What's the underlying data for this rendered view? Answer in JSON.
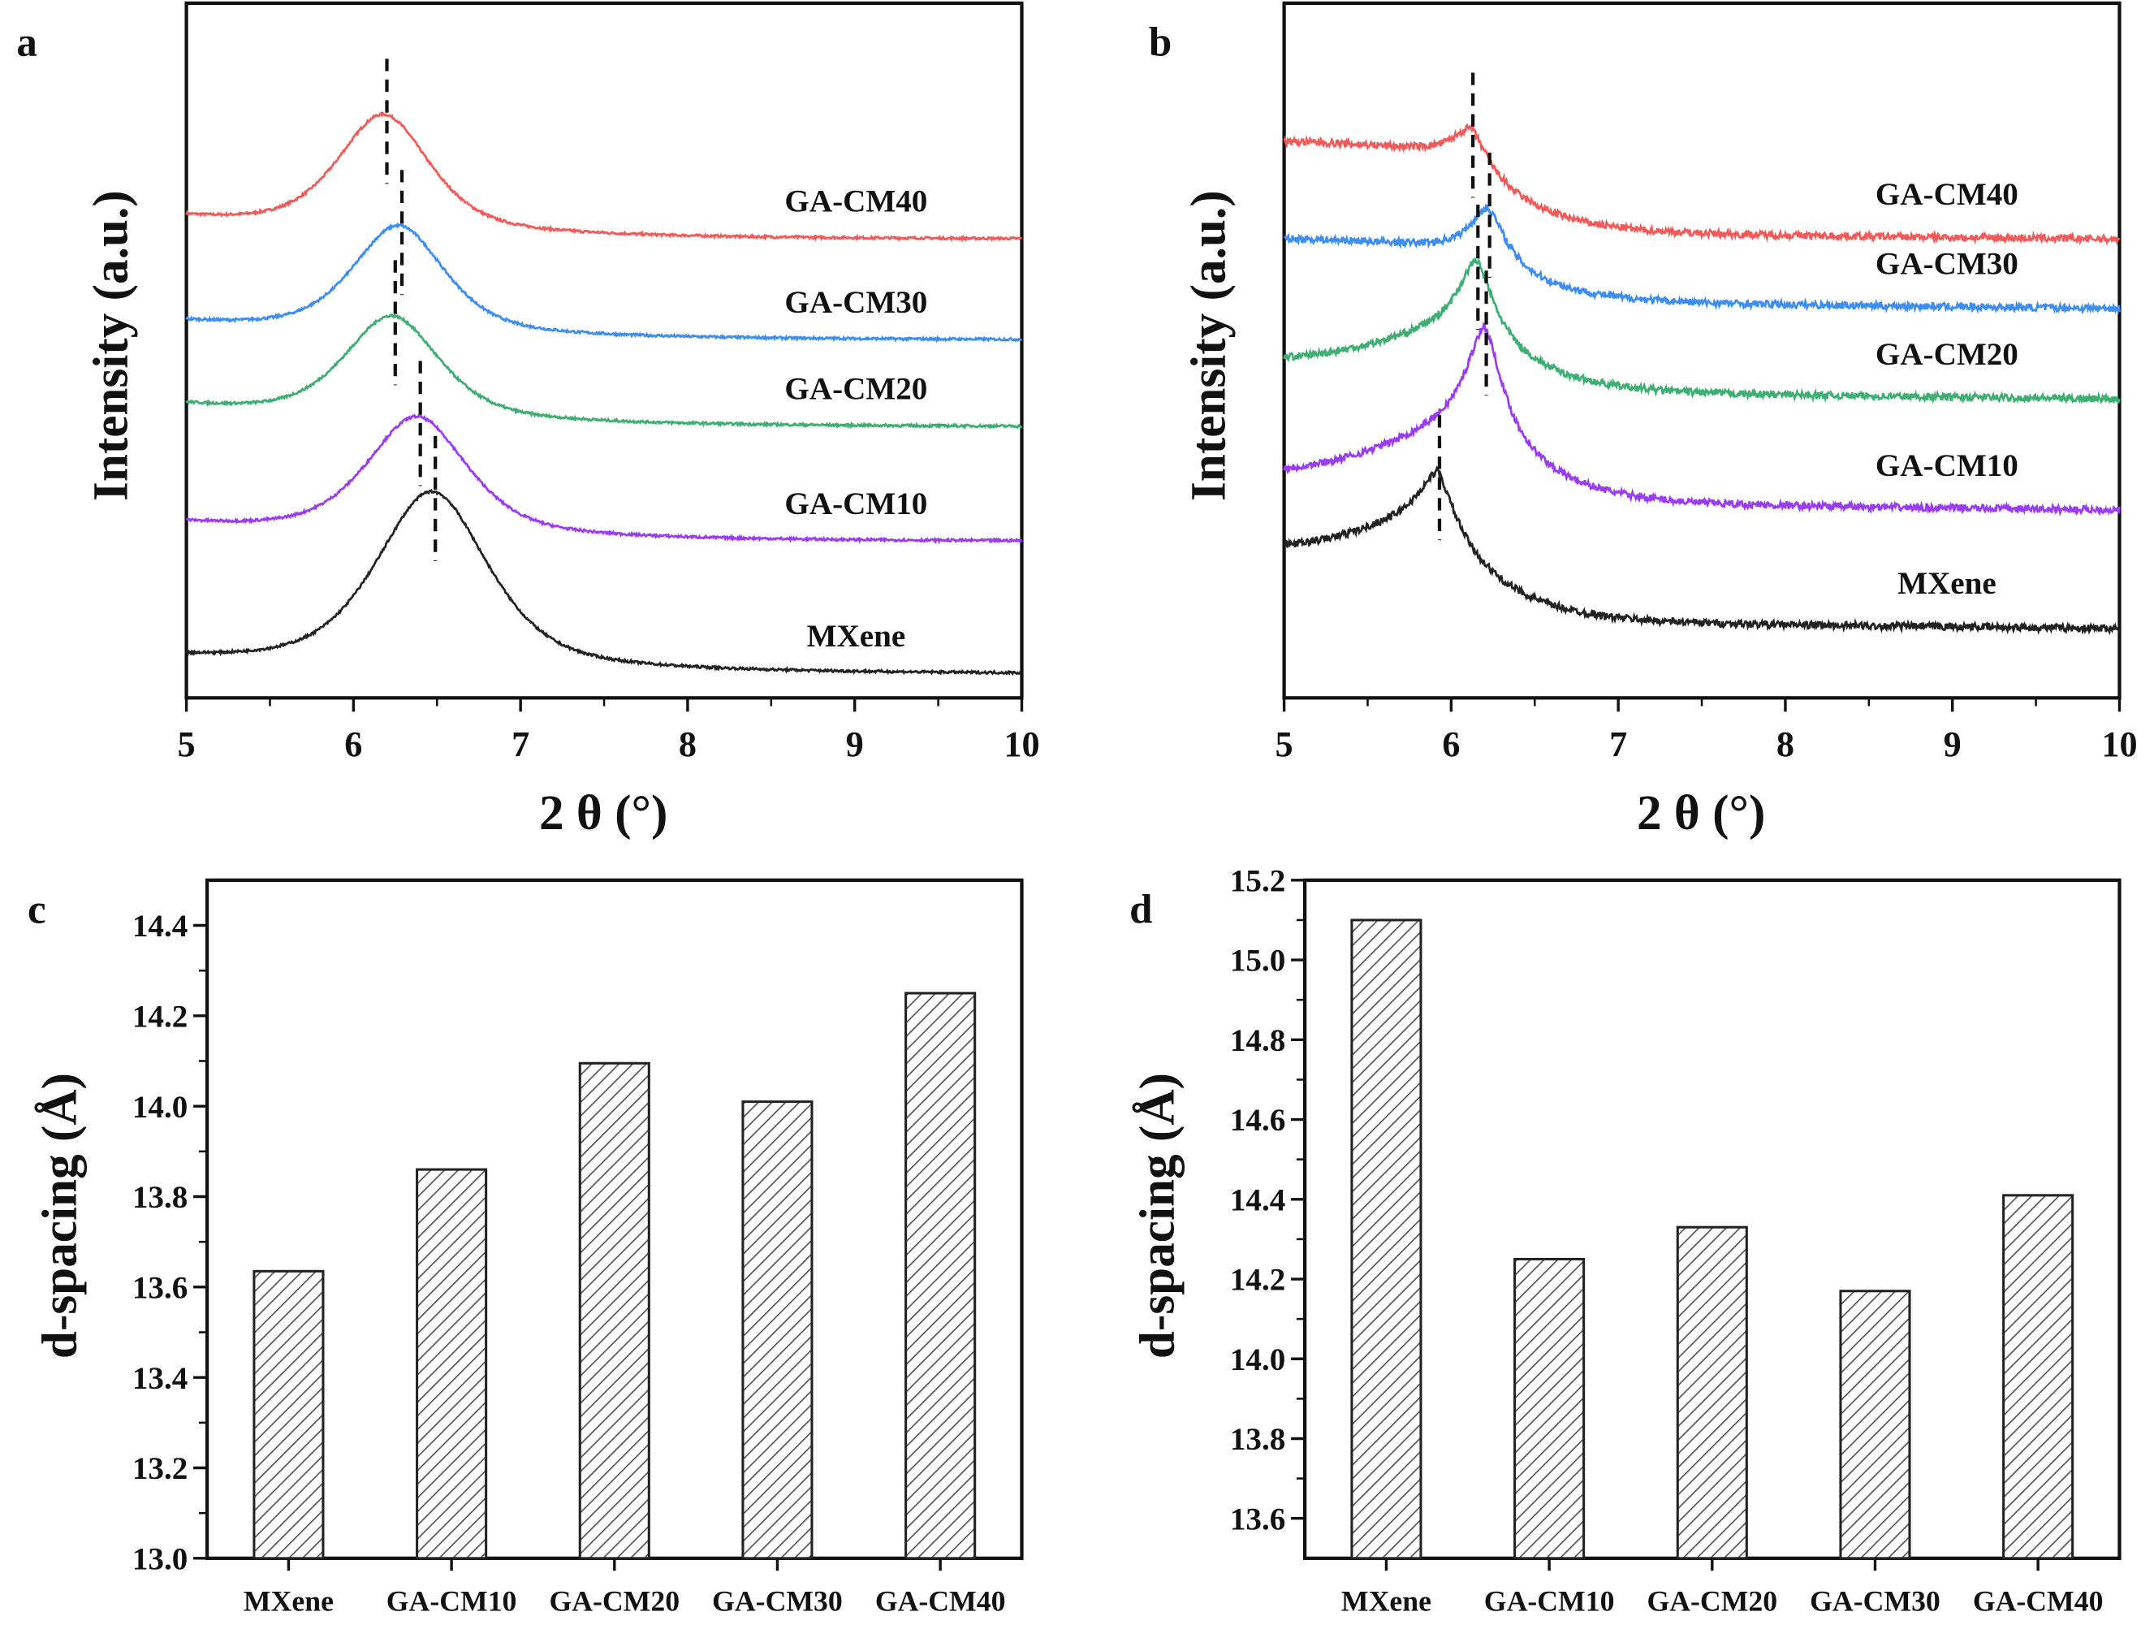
{
  "panel_letters": [
    "a",
    "b",
    "c",
    "d"
  ],
  "chart_data": [
    {
      "panel": "a",
      "type": "line",
      "xlabel": "2 θ (°)",
      "ylabel": "Intensity (a.u.)",
      "xlim": [
        5,
        10
      ],
      "ylim": [
        0,
        100
      ],
      "xticks": [
        "5",
        "6",
        "7",
        "8",
        "9",
        "10"
      ],
      "shape": "symmetric",
      "series": [
        {
          "name": "GA-CM40",
          "color": "#f25a5a",
          "peak_2theta": 6.18,
          "baseline_left": 69,
          "baseline_right": 66,
          "peak_top": 84,
          "hwhm": 0.33
        },
        {
          "name": "GA-CM30",
          "color": "#3d8ef0",
          "peak_2theta": 6.27,
          "baseline_left": 54,
          "baseline_right": 51.5,
          "peak_top": 68,
          "hwhm": 0.33
        },
        {
          "name": "GA-CM20",
          "color": "#3fae72",
          "peak_2theta": 6.23,
          "baseline_left": 42,
          "baseline_right": 39,
          "peak_top": 55,
          "hwhm": 0.34
        },
        {
          "name": "GA-CM10",
          "color": "#9b3cf5",
          "peak_2theta": 6.38,
          "baseline_left": 25,
          "baseline_right": 22.5,
          "peak_top": 40.5,
          "hwhm": 0.36
        },
        {
          "name": "MXene",
          "color": "#222222",
          "peak_2theta": 6.47,
          "baseline_left": 5.5,
          "baseline_right": 3.4,
          "peak_top": 29.7,
          "hwhm": 0.4
        }
      ]
    },
    {
      "panel": "b",
      "type": "line",
      "xlabel": "2 θ (°)",
      "ylabel": "Intensity (a.u.)",
      "xlim": [
        5,
        10
      ],
      "ylim": [
        0,
        100
      ],
      "xticks": [
        "5",
        "6",
        "7",
        "8",
        "9",
        "10"
      ],
      "shape": "asymmetric",
      "series": [
        {
          "name": "GA-CM40",
          "color": "#f25a5a",
          "peak_2theta": 6.12,
          "baseline_left": 80,
          "baseline_right": 67,
          "peak_top": 82,
          "shoulder": 78
        },
        {
          "name": "GA-CM30",
          "color": "#3d8ef0",
          "peak_2theta": 6.22,
          "baseline_left": 66,
          "baseline_right": 57,
          "peak_top": 70.5,
          "shoulder": 64
        },
        {
          "name": "GA-CM20",
          "color": "#3fae72",
          "peak_2theta": 6.15,
          "baseline_left": 49,
          "baseline_right": 44,
          "peak_top": 63,
          "shoulder": 55
        },
        {
          "name": "GA-CM10",
          "color": "#9b3cf5",
          "peak_2theta": 6.2,
          "baseline_left": 33,
          "baseline_right": 28,
          "peak_top": 53.5,
          "shoulder": 42
        },
        {
          "name": "MXene",
          "color": "#222222",
          "peak_2theta": 5.92,
          "baseline_left": 22,
          "baseline_right": 11,
          "peak_top": 32.7,
          "shoulder": 28
        }
      ]
    },
    {
      "panel": "c",
      "type": "bar",
      "xlabel": "",
      "ylabel": "d-spacing (Å)",
      "categories": [
        "MXene",
        "GA-CM10",
        "GA-CM20",
        "GA-CM30",
        "GA-CM40"
      ],
      "values": [
        13.635,
        13.86,
        14.095,
        14.01,
        14.25
      ],
      "ylim": [
        13.0,
        14.5
      ],
      "yticks": [
        "13.0",
        "13.2",
        "13.4",
        "13.6",
        "13.8",
        "14.0",
        "14.2",
        "14.4"
      ]
    },
    {
      "panel": "d",
      "type": "bar",
      "xlabel": "",
      "ylabel": "d-spacing (Å)",
      "categories": [
        "MXene",
        "GA-CM10",
        "GA-CM20",
        "GA-CM30",
        "GA-CM40"
      ],
      "values": [
        15.1,
        14.25,
        14.33,
        14.17,
        14.41
      ],
      "ylim": [
        13.5,
        15.2
      ],
      "yticks": [
        "13.6",
        "13.8",
        "14.0",
        "14.2",
        "14.4",
        "14.6",
        "14.8",
        "15.0",
        "15.2"
      ]
    }
  ]
}
